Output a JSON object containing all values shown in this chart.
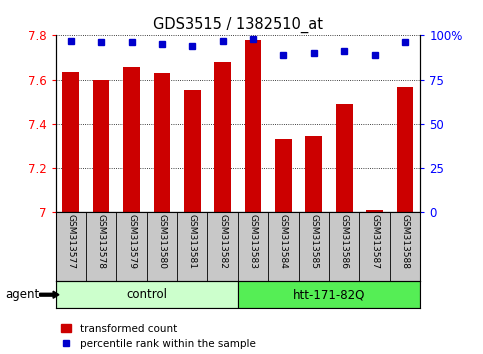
{
  "title": "GDS3515 / 1382510_at",
  "samples": [
    "GSM313577",
    "GSM313578",
    "GSM313579",
    "GSM313580",
    "GSM313581",
    "GSM313582",
    "GSM313583",
    "GSM313584",
    "GSM313585",
    "GSM313586",
    "GSM313587",
    "GSM313588"
  ],
  "bar_values": [
    7.635,
    7.6,
    7.655,
    7.63,
    7.555,
    7.68,
    7.78,
    7.33,
    7.345,
    7.49,
    7.01,
    7.565
  ],
  "dot_values": [
    97,
    96,
    96,
    95,
    94,
    97,
    98,
    89,
    90,
    91,
    89,
    96
  ],
  "groups": [
    {
      "label": "control",
      "start": 0,
      "end": 5,
      "color": "#ccffcc"
    },
    {
      "label": "htt-171-82Q",
      "start": 6,
      "end": 11,
      "color": "#55ee55"
    }
  ],
  "agent_label": "agent",
  "ymin": 7.0,
  "ymax": 7.8,
  "yticks": [
    7.0,
    7.2,
    7.4,
    7.6,
    7.8
  ],
  "ytick_labels": [
    "7",
    "7.2",
    "7.4",
    "7.6",
    "7.8"
  ],
  "y2min": 0,
  "y2max": 100,
  "y2ticks": [
    0,
    25,
    50,
    75,
    100
  ],
  "y2ticklabels": [
    "0",
    "25",
    "50",
    "75",
    "100%"
  ],
  "bar_color": "#cc0000",
  "dot_color": "#0000cc",
  "bar_width": 0.55,
  "grid_color": "#000000",
  "bg_color": "#ffffff",
  "tick_area_color": "#c8c8c8",
  "legend_red_label": "transformed count",
  "legend_blue_label": "percentile rank within the sample"
}
